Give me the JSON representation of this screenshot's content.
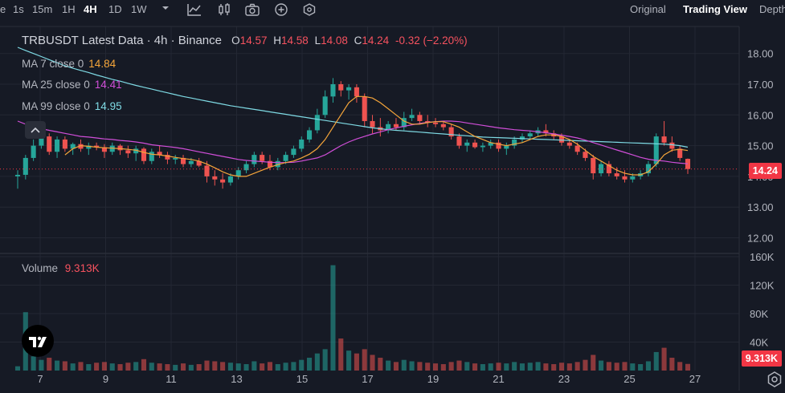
{
  "toolbar": {
    "items": [
      "1s",
      "15m",
      "1H",
      "4H",
      "1D",
      "1W"
    ],
    "active": "4H",
    "views": [
      "Original",
      "Trading View",
      "Depth"
    ],
    "active_view": "Trading View"
  },
  "legend": {
    "symbol": "TRBUSDT Latest Data · 4h · Binance",
    "o_label": "O",
    "o": "14.57",
    "h_label": "H",
    "h": "14.58",
    "l_label": "L",
    "l": "14.08",
    "c_label": "C",
    "c": "14.24",
    "change": "-0.32 (−2.20%)"
  },
  "ma": [
    {
      "label": "MA 7 close 0",
      "value": "14.84",
      "color": "#f5a53a"
    },
    {
      "label": "MA 25 close 0",
      "value": "14.41",
      "color": "#d04ed8"
    },
    {
      "label": "MA 99 close 0",
      "value": "14.95",
      "color": "#7fdbe5"
    }
  ],
  "volume": {
    "label": "Volume",
    "value": "9.313K"
  },
  "price_tag": "14.24",
  "volume_tag": "9.313K",
  "chart_data": {
    "type": "candlestick",
    "price_axis": [
      "18.00",
      "17.00",
      "16.00",
      "15.00",
      "14.00",
      "13.00",
      "12.00"
    ],
    "volume_axis": [
      "160K",
      "120K",
      "80K",
      "40K"
    ],
    "x_ticks": [
      "7",
      "9",
      "11",
      "13",
      "15",
      "17",
      "19",
      "21",
      "23",
      "25",
      "27"
    ],
    "ylim": [
      11.5,
      18.7
    ],
    "up_color": "#26a69a",
    "down_color": "#ef5350",
    "candles": [
      [
        14.0,
        14.2,
        13.6,
        14.05,
        6
      ],
      [
        14.05,
        14.7,
        13.9,
        14.6,
        82
      ],
      [
        14.6,
        15.2,
        14.5,
        15.0,
        20
      ],
      [
        15.0,
        15.4,
        14.9,
        15.3,
        15
      ],
      [
        15.3,
        15.4,
        14.7,
        14.8,
        18
      ],
      [
        14.8,
        15.3,
        14.6,
        15.2,
        14
      ],
      [
        15.2,
        15.3,
        14.8,
        14.9,
        13
      ],
      [
        14.9,
        15.1,
        14.7,
        15.05,
        10
      ],
      [
        15.05,
        15.2,
        14.8,
        14.9,
        12
      ],
      [
        14.9,
        15.1,
        14.7,
        15.0,
        9
      ],
      [
        15.0,
        15.1,
        14.85,
        14.95,
        11
      ],
      [
        14.95,
        15.05,
        14.6,
        14.8,
        12
      ],
      [
        14.8,
        15.1,
        14.7,
        15.0,
        10
      ],
      [
        15.0,
        15.05,
        14.7,
        14.85,
        9
      ],
      [
        14.85,
        15.0,
        14.6,
        14.75,
        11
      ],
      [
        14.75,
        15.0,
        14.5,
        14.9,
        12
      ],
      [
        14.9,
        14.95,
        14.4,
        14.5,
        16
      ],
      [
        14.5,
        14.9,
        14.4,
        14.8,
        11
      ],
      [
        14.8,
        15.0,
        14.6,
        14.7,
        10
      ],
      [
        14.7,
        14.8,
        14.4,
        14.55,
        9
      ],
      [
        14.55,
        14.7,
        14.4,
        14.6,
        8
      ],
      [
        14.6,
        14.7,
        14.3,
        14.4,
        10
      ],
      [
        14.4,
        14.6,
        14.3,
        14.5,
        8
      ],
      [
        14.5,
        14.6,
        14.3,
        14.35,
        9
      ],
      [
        14.35,
        14.5,
        13.8,
        14.0,
        14
      ],
      [
        14.0,
        14.2,
        13.7,
        13.9,
        13
      ],
      [
        13.9,
        14.1,
        13.6,
        13.8,
        12
      ],
      [
        13.8,
        14.1,
        13.7,
        14.0,
        11
      ],
      [
        14.0,
        14.3,
        13.9,
        14.2,
        10
      ],
      [
        14.2,
        14.5,
        14.1,
        14.4,
        9
      ],
      [
        14.4,
        14.8,
        14.3,
        14.7,
        13
      ],
      [
        14.7,
        14.8,
        14.4,
        14.5,
        10
      ],
      [
        14.5,
        14.7,
        14.2,
        14.3,
        12
      ],
      [
        14.3,
        14.6,
        14.2,
        14.5,
        9
      ],
      [
        14.5,
        14.8,
        14.4,
        14.7,
        11
      ],
      [
        14.7,
        15.0,
        14.6,
        14.9,
        12
      ],
      [
        14.9,
        15.3,
        14.8,
        15.2,
        15
      ],
      [
        15.2,
        15.6,
        15.1,
        15.5,
        18
      ],
      [
        15.5,
        16.2,
        15.4,
        16.0,
        24
      ],
      [
        16.0,
        16.8,
        15.9,
        16.6,
        30
      ],
      [
        16.6,
        17.2,
        16.4,
        17.0,
        148
      ],
      [
        17.0,
        17.1,
        16.6,
        16.8,
        45
      ],
      [
        16.8,
        17.0,
        16.5,
        16.9,
        28
      ],
      [
        16.9,
        17.0,
        16.4,
        16.6,
        24
      ],
      [
        16.6,
        16.7,
        15.6,
        15.8,
        30
      ],
      [
        15.8,
        16.0,
        15.4,
        15.6,
        22
      ],
      [
        15.6,
        15.9,
        15.3,
        15.5,
        18
      ],
      [
        15.5,
        15.8,
        15.4,
        15.7,
        14
      ],
      [
        15.7,
        15.9,
        15.5,
        15.6,
        12
      ],
      [
        15.6,
        16.1,
        15.5,
        15.9,
        15
      ],
      [
        15.9,
        16.2,
        15.8,
        16.0,
        13
      ],
      [
        16.0,
        16.1,
        15.7,
        15.8,
        12
      ],
      [
        15.8,
        16.0,
        15.6,
        15.75,
        11
      ],
      [
        15.75,
        15.9,
        15.6,
        15.7,
        10
      ],
      [
        15.7,
        15.8,
        15.5,
        15.6,
        9
      ],
      [
        15.6,
        15.7,
        15.2,
        15.3,
        12
      ],
      [
        15.3,
        15.4,
        14.9,
        15.0,
        14
      ],
      [
        15.0,
        15.2,
        14.8,
        15.1,
        12
      ],
      [
        15.1,
        15.2,
        14.9,
        14.95,
        10
      ],
      [
        14.95,
        15.1,
        14.8,
        15.0,
        9
      ],
      [
        15.0,
        15.2,
        14.9,
        15.1,
        10
      ],
      [
        15.1,
        15.2,
        14.8,
        14.9,
        11
      ],
      [
        14.9,
        15.1,
        14.7,
        15.0,
        10
      ],
      [
        15.0,
        15.3,
        14.9,
        15.2,
        12
      ],
      [
        15.2,
        15.4,
        15.1,
        15.3,
        10
      ],
      [
        15.3,
        15.5,
        15.2,
        15.4,
        11
      ],
      [
        15.4,
        15.6,
        15.3,
        15.5,
        12
      ],
      [
        15.5,
        15.7,
        15.3,
        15.4,
        10
      ],
      [
        15.4,
        15.5,
        15.2,
        15.3,
        9
      ],
      [
        15.3,
        15.4,
        15.0,
        15.1,
        11
      ],
      [
        15.1,
        15.2,
        14.9,
        15.0,
        10
      ],
      [
        15.0,
        15.1,
        14.7,
        14.8,
        12
      ],
      [
        14.8,
        14.9,
        14.5,
        14.6,
        15
      ],
      [
        14.6,
        14.7,
        13.9,
        14.1,
        22
      ],
      [
        14.1,
        14.5,
        14.0,
        14.4,
        14
      ],
      [
        14.4,
        14.5,
        14.0,
        14.1,
        12
      ],
      [
        14.1,
        14.3,
        13.9,
        14.0,
        11
      ],
      [
        14.0,
        14.2,
        13.8,
        13.9,
        12
      ],
      [
        13.9,
        14.1,
        13.8,
        14.0,
        10
      ],
      [
        14.0,
        14.2,
        13.9,
        14.1,
        9
      ],
      [
        14.1,
        14.5,
        14.0,
        14.4,
        13
      ],
      [
        14.4,
        15.4,
        14.3,
        15.3,
        26
      ],
      [
        15.3,
        15.8,
        15.0,
        15.1,
        32
      ],
      [
        15.1,
        15.3,
        14.8,
        14.9,
        18
      ],
      [
        14.9,
        15.0,
        14.5,
        14.6,
        12
      ],
      [
        14.57,
        14.58,
        14.08,
        14.24,
        9.3
      ]
    ],
    "ma7": [
      null,
      null,
      null,
      null,
      null,
      null,
      14.7,
      14.9,
      15.0,
      14.98,
      14.95,
      14.93,
      14.92,
      14.9,
      14.88,
      14.85,
      14.78,
      14.72,
      14.7,
      14.66,
      14.62,
      14.58,
      14.55,
      14.5,
      14.4,
      14.28,
      14.15,
      14.05,
      14.0,
      14.0,
      14.1,
      14.2,
      14.3,
      14.38,
      14.45,
      14.5,
      14.6,
      14.72,
      14.9,
      15.2,
      15.6,
      16.0,
      16.4,
      16.6,
      16.6,
      16.55,
      16.4,
      16.2,
      16.0,
      15.8,
      15.7,
      15.7,
      15.75,
      15.78,
      15.78,
      15.7,
      15.6,
      15.45,
      15.3,
      15.2,
      15.1,
      15.05,
      15.0,
      15.05,
      15.1,
      15.2,
      15.3,
      15.35,
      15.35,
      15.3,
      15.2,
      15.05,
      14.85,
      14.65,
      14.5,
      14.35,
      14.2,
      14.1,
      14.05,
      14.05,
      14.15,
      14.4,
      14.7,
      14.85,
      14.88,
      14.84
    ],
    "ma25": [
      15.8,
      15.7,
      15.6,
      15.55,
      15.5,
      15.45,
      15.4,
      15.35,
      15.3,
      15.28,
      15.25,
      15.22,
      15.2,
      15.17,
      15.15,
      15.12,
      15.08,
      15.03,
      15.0,
      14.97,
      14.94,
      14.9,
      14.85,
      14.8,
      14.75,
      14.7,
      14.65,
      14.6,
      14.55,
      14.52,
      14.5,
      14.48,
      14.46,
      14.45,
      14.45,
      14.46,
      14.5,
      14.55,
      14.6,
      14.7,
      14.85,
      15.0,
      15.12,
      15.22,
      15.3,
      15.38,
      15.45,
      15.52,
      15.58,
      15.63,
      15.68,
      15.72,
      15.76,
      15.78,
      15.8,
      15.8,
      15.78,
      15.74,
      15.7,
      15.66,
      15.62,
      15.58,
      15.55,
      15.52,
      15.5,
      15.48,
      15.45,
      15.42,
      15.38,
      15.34,
      15.3,
      15.25,
      15.18,
      15.1,
      15.02,
      14.94,
      14.86,
      14.78,
      14.7,
      14.62,
      14.56,
      14.52,
      14.5,
      14.46,
      14.43,
      14.41
    ],
    "ma99": [
      18.2,
      18.1,
      18.0,
      17.9,
      17.8,
      17.7,
      17.6,
      17.52,
      17.45,
      17.38,
      17.3,
      17.23,
      17.16,
      17.1,
      17.03,
      16.96,
      16.9,
      16.84,
      16.78,
      16.72,
      16.66,
      16.6,
      16.55,
      16.5,
      16.45,
      16.4,
      16.35,
      16.3,
      16.26,
      16.22,
      16.18,
      16.14,
      16.1,
      16.06,
      16.02,
      15.98,
      15.94,
      15.9,
      15.86,
      15.82,
      15.78,
      15.74,
      15.7,
      15.66,
      15.62,
      15.58,
      15.55,
      15.52,
      15.5,
      15.48,
      15.46,
      15.44,
      15.42,
      15.4,
      15.38,
      15.36,
      15.34,
      15.32,
      15.3,
      15.28,
      15.27,
      15.26,
      15.25,
      15.24,
      15.23,
      15.22,
      15.21,
      15.2,
      15.19,
      15.18,
      15.17,
      15.16,
      15.15,
      15.14,
      15.13,
      15.12,
      15.11,
      15.1,
      15.09,
      15.08,
      15.07,
      15.06,
      15.05,
      15.03,
      15.0,
      14.95
    ]
  }
}
